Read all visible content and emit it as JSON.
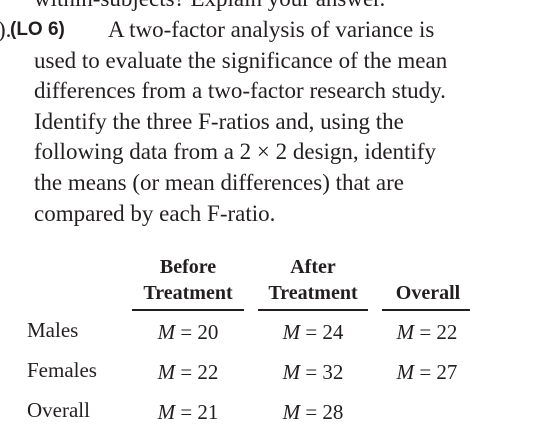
{
  "question": {
    "cut_off_line": "within-subjects? Explain your answer.",
    "number_fragment": ").",
    "learning_objective": "(LO 6)",
    "lines": [
      "A two-factor analysis of variance is",
      "used to evaluate the significance of the mean",
      "differences from a two-factor research study.",
      "Identify the three F-ratios and, using the",
      "following data from a 2 × 2 design, identify",
      "the means (or mean differences) that are",
      "compared by each F-ratio."
    ]
  },
  "table": {
    "col_headers": [
      {
        "top": "Before",
        "bottom": "Treatment"
      },
      {
        "top": "After",
        "bottom": "Treatment"
      },
      {
        "top": "",
        "bottom": "Overall"
      }
    ],
    "rows": [
      {
        "label": "Males",
        "cells": [
          "M = 20",
          "M = 24",
          "M = 22"
        ]
      },
      {
        "label": "Females",
        "cells": [
          "M = 22",
          "M = 32",
          "M = 27"
        ]
      },
      {
        "label": "Overall",
        "cells": [
          "M = 21",
          "M = 28",
          ""
        ]
      }
    ]
  }
}
